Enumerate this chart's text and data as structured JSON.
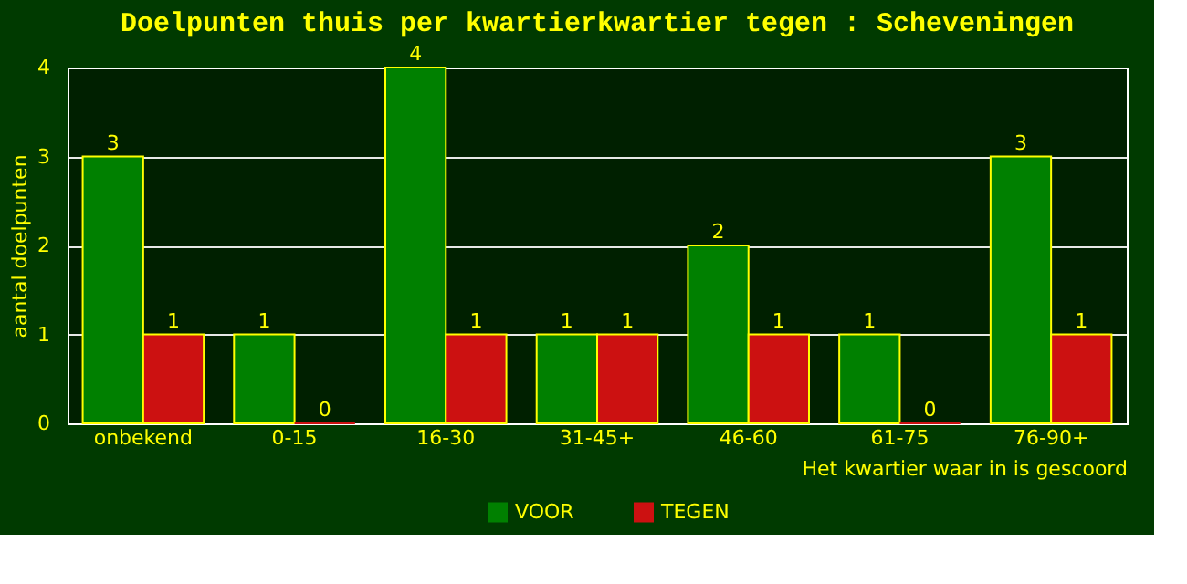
{
  "chart_data": {
    "type": "bar",
    "title": "Doelpunten thuis per kwartierkwartier tegen : Scheveningen",
    "xlabel": "Het kwartier waar in is gescoord",
    "ylabel": "aantal doelpunten",
    "categories": [
      "onbekend",
      "0-15",
      "16-30",
      "31-45+",
      "46-60",
      "61-75",
      "76-90+"
    ],
    "series": [
      {
        "name": "VOOR",
        "color": "#008000",
        "values": [
          3,
          1,
          4,
          1,
          2,
          1,
          3
        ]
      },
      {
        "name": "TEGEN",
        "color": "#cc1111",
        "values": [
          1,
          0,
          1,
          1,
          1,
          0,
          1
        ]
      }
    ],
    "ylim": [
      0,
      4
    ],
    "yticks": [
      0,
      1,
      2,
      3,
      4
    ],
    "grid": "y",
    "legend": "bottom",
    "data_labels": true
  }
}
